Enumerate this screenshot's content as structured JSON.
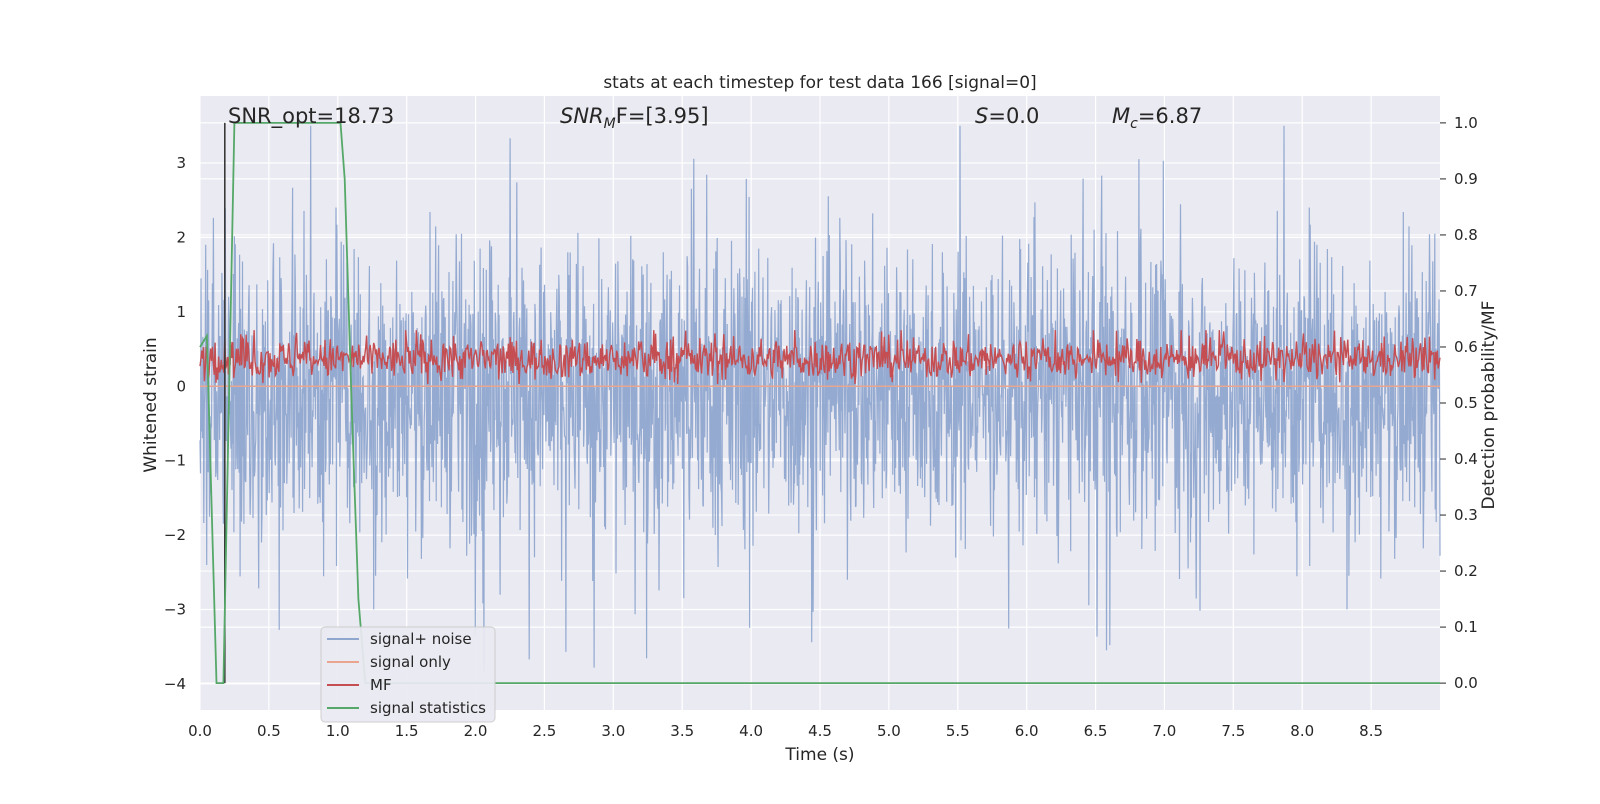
{
  "chart_data": {
    "type": "line",
    "title": "stats at each timestep for test data 166 [signal=0]",
    "xlabel": "Time (s)",
    "ylabel_left": "Whitened strain",
    "ylabel_right": "Detection probability/MF",
    "xlim": [
      0.0,
      9.0
    ],
    "ylim_left": [
      -4.35,
      3.9
    ],
    "ylim_right": [
      -0.048,
      1.048
    ],
    "x_ticks": [
      "0.0",
      "0.5",
      "1.0",
      "1.5",
      "2.0",
      "2.5",
      "3.0",
      "3.5",
      "4.0",
      "4.5",
      "5.0",
      "5.5",
      "6.0",
      "6.5",
      "7.0",
      "7.5",
      "8.0",
      "8.5"
    ],
    "y_ticks_left": [
      "3",
      "2",
      "1",
      "0",
      "−1",
      "−2",
      "−3",
      "−4"
    ],
    "y_ticks_right": [
      "1.0",
      "0.9",
      "0.8",
      "0.7",
      "0.6",
      "0.5",
      "0.4",
      "0.3",
      "0.2",
      "0.1",
      "0.0"
    ],
    "grid": true,
    "annotations": {
      "snr_opt": "SNR_opt=18.73",
      "snr_mf_sym": "SNR",
      "snr_mf_sub": "M",
      "snr_mf_rest": "F=[3.95]",
      "s_sym": "S",
      "s_rest": "=0.0",
      "mc_sym": "M",
      "mc_sub": "c",
      "mc_rest": "=6.87"
    },
    "series": [
      {
        "name": "signal+ noise",
        "color": "#8fa6cf",
        "description_values": {
          "range_approx": [
            -4.0,
            3.5
          ],
          "center": -0.1
        }
      },
      {
        "name": "signal only",
        "color": "#e9a58f",
        "values_constant": 0.0
      },
      {
        "name": "MF",
        "color": "#c44e52",
        "range_approx_right_axis": [
          0.53,
          0.63
        ]
      },
      {
        "name": "signal statistics",
        "color": "#55a868",
        "x": [
          0.0,
          0.05,
          0.12,
          0.17,
          0.25,
          0.3,
          1.02,
          1.05,
          1.1,
          1.15,
          1.2,
          9.0
        ],
        "y": [
          0.6,
          0.62,
          0.0,
          0.0,
          1.0,
          1.0,
          1.0,
          0.9,
          0.5,
          0.15,
          0.0,
          0.0
        ]
      }
    ],
    "vertical_marker": {
      "x": 0.18,
      "color": "#3a3a3a"
    },
    "legend": {
      "placement": "lower-left"
    }
  }
}
